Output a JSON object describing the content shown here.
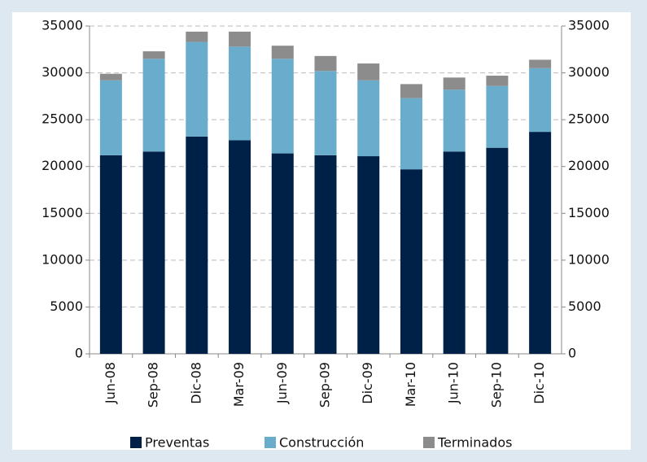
{
  "chart_data": {
    "type": "stacked_bar",
    "categories": [
      "Jun-08",
      "Sep-08",
      "Dic-08",
      "Mar-09",
      "Jun-09",
      "Sep-09",
      "Dic-09",
      "Mar-10",
      "Jun-10",
      "Sep-10",
      "Dic-10"
    ],
    "series": [
      {
        "name": "Preventas",
        "color": "#002147",
        "values": [
          21200,
          21600,
          23200,
          22800,
          21400,
          21200,
          21100,
          19700,
          21600,
          22000,
          23700
        ]
      },
      {
        "name": "Construcción",
        "color": "#6aaccc",
        "values": [
          8000,
          9900,
          10100,
          10000,
          10100,
          9000,
          8100,
          7600,
          6600,
          6600,
          6800
        ]
      },
      {
        "name": "Terminados",
        "color": "#8c8c8c",
        "values": [
          700,
          800,
          1100,
          1600,
          1400,
          1600,
          1800,
          1500,
          1300,
          1100,
          900
        ]
      }
    ],
    "ylim": [
      0,
      35000
    ],
    "yticks": [
      0,
      5000,
      10000,
      15000,
      20000,
      25000,
      30000,
      35000
    ],
    "y2lim": [
      0,
      35000
    ],
    "y2ticks": [
      0,
      5000,
      10000,
      15000,
      20000,
      25000,
      30000,
      35000
    ],
    "grid": true,
    "legend": "bottom"
  }
}
